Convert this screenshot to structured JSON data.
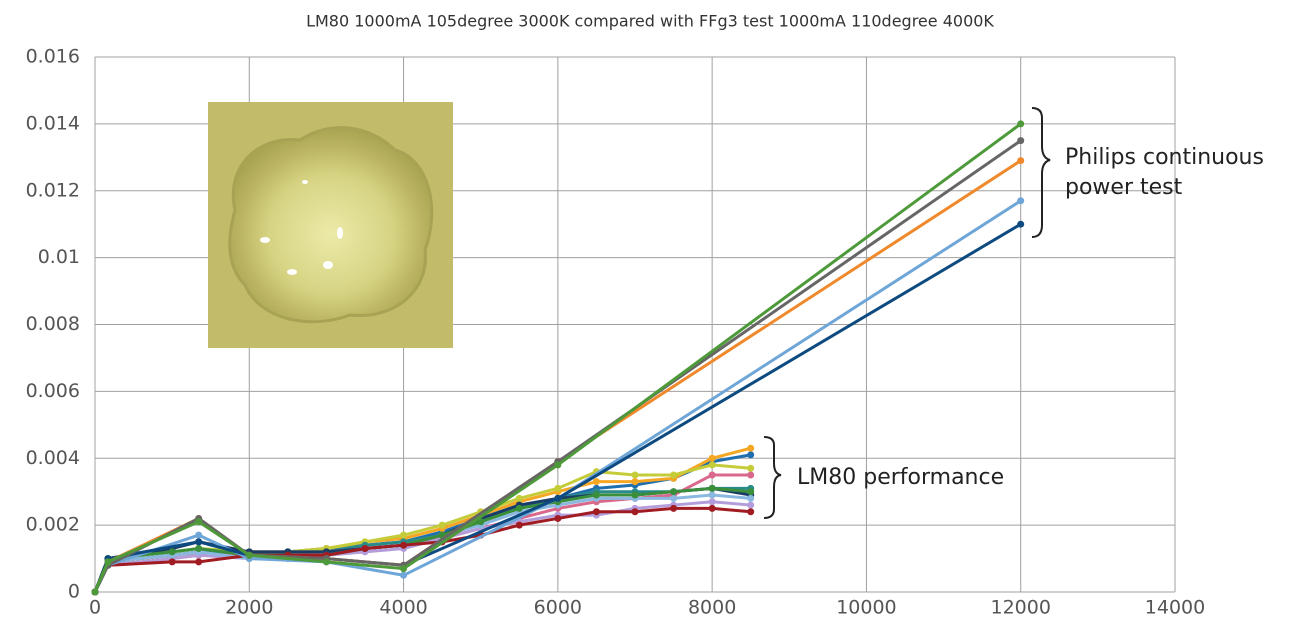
{
  "chart_data": {
    "type": "line",
    "title": "LM80 1000mA 105degree 3000K compared with FFg3 test 1000mA 110degree 4000K",
    "xlim": [
      0,
      14000
    ],
    "xticks": [
      0,
      2000,
      4000,
      6000,
      8000,
      10000,
      12000,
      14000
    ],
    "ylim": [
      0,
      0.016
    ],
    "yticks": [
      0,
      0.002,
      0.004,
      0.006,
      0.008,
      0.01,
      0.012,
      0.014,
      0.016
    ],
    "grid": true,
    "annotations": [
      {
        "lines": [
          "Philips continuous",
          "power test"
        ]
      },
      {
        "lines": [
          "LM80 performance"
        ]
      }
    ],
    "series": [
      {
        "color": "#1f6fb0",
        "x": [
          0,
          168,
          1000,
          1344,
          2000,
          2500,
          3000,
          3500,
          4000,
          4500,
          5000,
          5500,
          6000,
          6500,
          7000,
          7500,
          8000,
          8500
        ],
        "values": [
          0,
          0.0009,
          0.0011,
          0.0012,
          0.0012,
          0.0012,
          0.0013,
          0.0014,
          0.0015,
          0.0018,
          0.0022,
          0.0025,
          0.0028,
          0.0031,
          0.0032,
          0.0034,
          0.0039,
          0.0041
        ]
      },
      {
        "color": "#f5a623",
        "x": [
          0,
          168,
          1000,
          1344,
          2000,
          2500,
          3000,
          3500,
          4000,
          4500,
          5000,
          5500,
          6000,
          6500,
          7000,
          7500,
          8000,
          8500
        ],
        "values": [
          0,
          0.0009,
          0.0011,
          0.0012,
          0.0012,
          0.0012,
          0.0013,
          0.0015,
          0.0016,
          0.0019,
          0.0023,
          0.0027,
          0.003,
          0.0033,
          0.0033,
          0.0034,
          0.004,
          0.0043
        ]
      },
      {
        "color": "#c5cc3a",
        "x": [
          0,
          168,
          1000,
          1344,
          2000,
          2500,
          3000,
          3500,
          4000,
          4500,
          5000,
          5500,
          6000,
          6500,
          7000,
          7500,
          8000,
          8500
        ],
        "values": [
          0,
          0.001,
          0.0012,
          0.0013,
          0.0012,
          0.0012,
          0.0013,
          0.0015,
          0.0017,
          0.002,
          0.0024,
          0.0028,
          0.0031,
          0.0036,
          0.0035,
          0.0035,
          0.0038,
          0.0037
        ]
      },
      {
        "color": "#2a8a8a",
        "x": [
          0,
          168,
          1000,
          1344,
          2000,
          2500,
          3000,
          3500,
          4000,
          4500,
          5000,
          5500,
          6000,
          6500,
          7000,
          7500,
          8000,
          8500
        ],
        "values": [
          0,
          0.0009,
          0.0011,
          0.0012,
          0.0011,
          0.0012,
          0.0012,
          0.0014,
          0.0015,
          0.0017,
          0.0021,
          0.0025,
          0.0028,
          0.003,
          0.003,
          0.003,
          0.0031,
          0.0031
        ]
      },
      {
        "color": "#d9688a",
        "x": [
          0,
          168,
          1000,
          1344,
          2000,
          2500,
          3000,
          3500,
          4000,
          4500,
          5000,
          5500,
          6000,
          6500,
          7000,
          7500,
          8000,
          8500
        ],
        "values": [
          0,
          0.0008,
          0.001,
          0.0011,
          0.0011,
          0.0011,
          0.0012,
          0.0013,
          0.0014,
          0.0016,
          0.0019,
          0.0022,
          0.0025,
          0.0027,
          0.0028,
          0.0029,
          0.0035,
          0.0035
        ]
      },
      {
        "color": "#b39ddb",
        "x": [
          0,
          168,
          1000,
          1344,
          2000,
          2500,
          3000,
          3500,
          4000,
          4500,
          5000,
          5500,
          6000,
          6500,
          7000,
          7500,
          8000,
          8500
        ],
        "values": [
          0,
          0.0008,
          0.001,
          0.0011,
          0.001,
          0.001,
          0.0011,
          0.0012,
          0.0013,
          0.0016,
          0.0019,
          0.0021,
          0.0023,
          0.0023,
          0.0025,
          0.0026,
          0.0027,
          0.0026
        ]
      },
      {
        "color": "#1a3c66",
        "x": [
          0,
          168,
          1000,
          1344,
          2000,
          2500,
          3000,
          3500,
          4000,
          4500,
          5000,
          5500,
          6000,
          6500,
          7000,
          7500,
          8000,
          8500
        ],
        "values": [
          0,
          0.001,
          0.0013,
          0.0015,
          0.0012,
          0.0012,
          0.0012,
          0.0013,
          0.0014,
          0.0017,
          0.0022,
          0.0026,
          0.0028,
          0.0029,
          0.0029,
          0.003,
          0.0031,
          0.0029
        ]
      },
      {
        "color": "#8ab8e0",
        "x": [
          0,
          168,
          1000,
          1344,
          2000,
          2500,
          3000,
          3500,
          4000,
          4500,
          5000,
          5500,
          6000,
          6500,
          7000,
          7500,
          8000,
          8500
        ],
        "values": [
          0,
          0.0009,
          0.0011,
          0.0012,
          0.001,
          0.001,
          0.0011,
          0.0013,
          0.0014,
          0.0017,
          0.002,
          0.0024,
          0.0026,
          0.0028,
          0.0028,
          0.0028,
          0.0029,
          0.0028
        ]
      },
      {
        "color": "#3b8f3b",
        "x": [
          0,
          168,
          1000,
          1344,
          2000,
          2500,
          3000,
          3500,
          4000,
          4500,
          5000,
          5500,
          6000,
          6500,
          7000,
          7500,
          8000,
          8500
        ],
        "values": [
          0,
          0.001,
          0.0012,
          0.0013,
          0.0011,
          0.0011,
          0.0011,
          0.0013,
          0.0014,
          0.0017,
          0.0021,
          0.0025,
          0.0027,
          0.0029,
          0.0029,
          0.003,
          0.0031,
          0.003
        ]
      },
      {
        "color": "#a01c22",
        "x": [
          0,
          168,
          1000,
          1344,
          2000,
          2500,
          3000,
          3500,
          4000,
          4500,
          5000,
          5500,
          6000,
          6500,
          7000,
          7500,
          8000,
          8500
        ],
        "values": [
          0,
          0.0008,
          0.0009,
          0.0009,
          0.0011,
          0.0011,
          0.0011,
          0.0013,
          0.0014,
          0.0015,
          0.0017,
          0.002,
          0.0022,
          0.0024,
          0.0024,
          0.0025,
          0.0025,
          0.0024
        ]
      },
      {
        "color": "#6fa6d8",
        "x": [
          0,
          168,
          1344,
          2000,
          3000,
          4000,
          6000,
          12000
        ],
        "values": [
          0,
          0.0008,
          0.0017,
          0.001,
          0.0009,
          0.0005,
          0.0028,
          0.0117
        ]
      },
      {
        "color": "#0d4a80",
        "x": [
          0,
          168,
          1344,
          2000,
          3000,
          4000,
          6000,
          12000
        ],
        "values": [
          0,
          0.001,
          0.0015,
          0.0011,
          0.001,
          0.0008,
          0.0028,
          0.011
        ]
      },
      {
        "color": "#f0892b",
        "x": [
          0,
          168,
          1344,
          2000,
          3000,
          4000,
          6000,
          12000
        ],
        "values": [
          0,
          0.0009,
          0.0022,
          0.0011,
          0.001,
          0.0008,
          0.0039,
          0.0129
        ]
      },
      {
        "color": "#666666",
        "x": [
          0,
          168,
          1344,
          2000,
          3000,
          4000,
          6000,
          12000
        ],
        "values": [
          0,
          0.0008,
          0.0022,
          0.0011,
          0.001,
          0.0008,
          0.0039,
          0.0135
        ]
      },
      {
        "color": "#4e9a3a",
        "x": [
          0,
          168,
          1344,
          2000,
          3000,
          4000,
          6000,
          12000
        ],
        "values": [
          0,
          0.0009,
          0.0021,
          0.0011,
          0.0009,
          0.0007,
          0.0038,
          0.014
        ]
      }
    ]
  }
}
